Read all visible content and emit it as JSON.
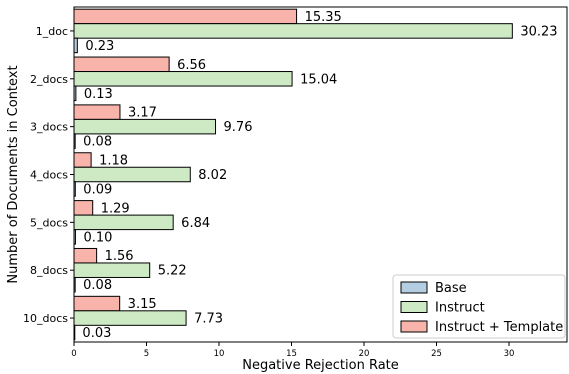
{
  "chart_data": {
    "type": "bar",
    "orientation": "horizontal",
    "title": "",
    "xlabel": "Negative Rejection Rate",
    "ylabel": "Number of Documents in Context",
    "xlim": [
      0,
      34
    ],
    "xticks": [
      0,
      5,
      10,
      15,
      20,
      25,
      30
    ],
    "grid": false,
    "legend_position": "lower-right",
    "categories": [
      "1_doc",
      "2_docs",
      "3_docs",
      "4_docs",
      "5_docs",
      "8_docs",
      "10_docs"
    ],
    "series": [
      {
        "name": "Base",
        "color": "#b4cde0",
        "values": [
          0.23,
          0.13,
          0.08,
          0.09,
          0.1,
          0.08,
          0.03
        ],
        "labels": [
          "0.23",
          "0.13",
          "0.08",
          "0.09",
          "0.10",
          "0.08",
          "0.03"
        ]
      },
      {
        "name": "Instruct",
        "color": "#cdeac4",
        "values": [
          30.23,
          15.04,
          9.76,
          8.02,
          6.84,
          5.22,
          7.73
        ],
        "labels": [
          "30.23",
          "15.04",
          "9.76",
          "8.02",
          "6.84",
          "5.22",
          "7.73"
        ]
      },
      {
        "name": "Instruct + Template",
        "color": "#f8b3ab",
        "values": [
          15.35,
          6.56,
          3.17,
          1.18,
          1.29,
          1.56,
          3.15
        ],
        "labels": [
          "15.35",
          "6.56",
          "3.17",
          "1.18",
          "1.29",
          "1.56",
          "3.15"
        ]
      }
    ]
  }
}
